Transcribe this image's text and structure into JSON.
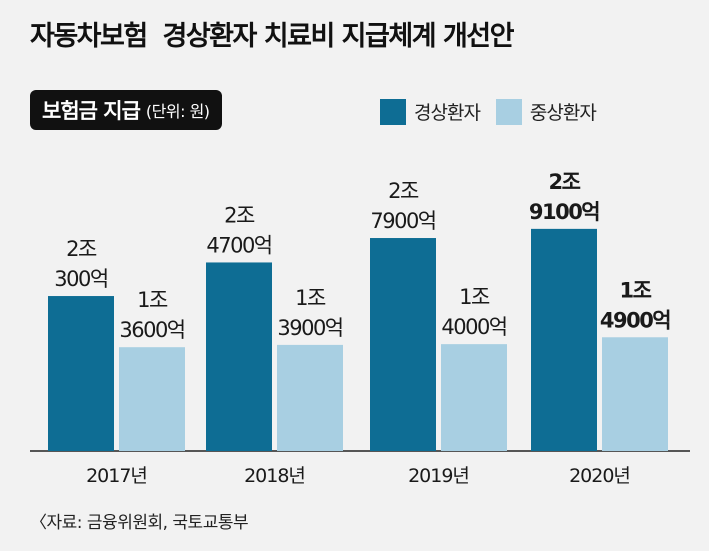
{
  "title": "자동차보험  경상환자 치료비 지급체계 개선안",
  "unit_box": {
    "main": "보험금 지급",
    "sub": "(단위: 원)"
  },
  "legend": [
    {
      "name": "경상환자",
      "color": "#0e6d94"
    },
    {
      "name": "중상환자",
      "color": "#a8cfe2"
    }
  ],
  "source": "〈자료: 금융위원회, 국토교통부",
  "chart_data": {
    "type": "bar",
    "categories": [
      "2017년",
      "2018년",
      "2019년",
      "2020년"
    ],
    "series": [
      {
        "name": "경상환자",
        "color": "#0e6d94",
        "values": [
          20300,
          24700,
          27900,
          29100
        ],
        "labels": [
          [
            "2조",
            "300억"
          ],
          [
            "2조",
            "4700억"
          ],
          [
            "2조",
            "7900억"
          ],
          [
            "2조",
            "9100억"
          ]
        ]
      },
      {
        "name": "중상환자",
        "color": "#a8cfe2",
        "values": [
          13600,
          13900,
          14000,
          14900
        ],
        "labels": [
          [
            "1조",
            "3600억"
          ],
          [
            "1조",
            "3900억"
          ],
          [
            "1조",
            "4000억"
          ],
          [
            "1조",
            "4900억"
          ]
        ]
      }
    ],
    "unit": "억원",
    "highlight_category": "2020년",
    "ylim": [
      0,
      30000
    ],
    "grid": false
  }
}
